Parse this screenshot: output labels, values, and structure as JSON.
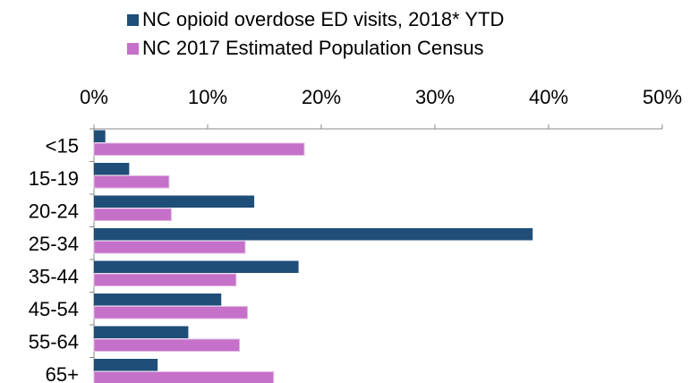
{
  "chart_data": {
    "type": "bar",
    "orientation": "horizontal",
    "categories": [
      "<15",
      "15-19",
      "20-24",
      "25-34",
      "35-44",
      "45-54",
      "55-64",
      "65+"
    ],
    "series": [
      {
        "name": "NC opioid overdose ED visits, 2018* YTD",
        "color": "#1f4e79",
        "values": [
          1.0,
          3.1,
          14.1,
          38.6,
          18.0,
          11.2,
          8.3,
          5.6
        ]
      },
      {
        "name": "NC 2017 Estimated Population Census",
        "color": "#c570c9",
        "values": [
          18.5,
          6.6,
          6.8,
          13.3,
          12.5,
          13.5,
          12.8,
          15.8
        ]
      }
    ],
    "x_ticks": [
      "0%",
      "10%",
      "20%",
      "30%",
      "40%",
      "50%"
    ],
    "xlim": [
      0,
      50
    ],
    "x_axis_position": "top",
    "grid": false,
    "legend_position": "top",
    "title": "",
    "xlabel": "",
    "ylabel": ""
  }
}
